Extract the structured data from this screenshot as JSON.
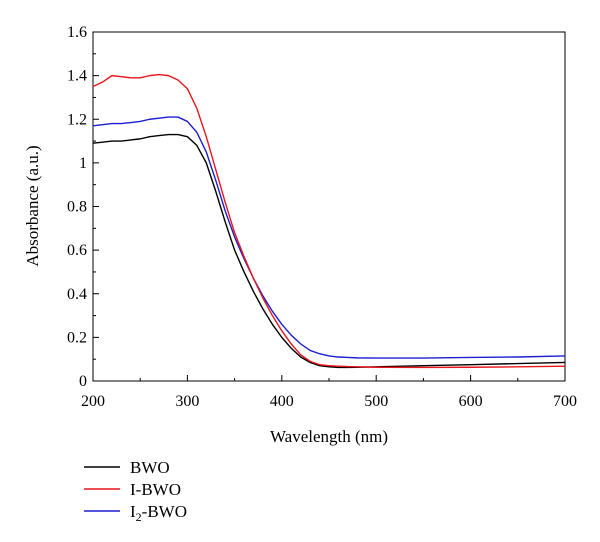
{
  "chart_data": {
    "type": "line",
    "xlabel": "Wavelength (nm)",
    "ylabel": "Absorbance (a.u.)",
    "xlim": [
      200,
      700
    ],
    "ylim": [
      0,
      1.6
    ],
    "xticks": [
      200,
      300,
      400,
      500,
      600,
      700
    ],
    "yticks": [
      0,
      0.2,
      0.4,
      0.6,
      0.8,
      1,
      1.2,
      1.4,
      1.6
    ],
    "ytick_labels": [
      "0",
      "0.2",
      "0.4",
      "0.6",
      "0.8",
      "1",
      "1.2",
      "1.4",
      "1.6"
    ],
    "grid": false,
    "legend_position": "bottom-left, below plot",
    "series": [
      {
        "name": "BWO",
        "color": "#000000",
        "x": [
          200,
          210,
          220,
          230,
          240,
          250,
          260,
          270,
          280,
          290,
          300,
          310,
          320,
          330,
          340,
          350,
          360,
          370,
          380,
          390,
          400,
          410,
          420,
          430,
          440,
          450,
          460,
          470,
          480,
          500,
          550,
          600,
          650,
          700
        ],
        "y": [
          1.09,
          1.095,
          1.1,
          1.1,
          1.105,
          1.11,
          1.12,
          1.125,
          1.13,
          1.13,
          1.12,
          1.08,
          1.0,
          0.87,
          0.73,
          0.6,
          0.5,
          0.41,
          0.33,
          0.26,
          0.2,
          0.15,
          0.11,
          0.085,
          0.07,
          0.065,
          0.062,
          0.062,
          0.063,
          0.065,
          0.07,
          0.075,
          0.08,
          0.085
        ]
      },
      {
        "name": "I-BWO",
        "color": "#e8151b",
        "x": [
          200,
          210,
          220,
          230,
          240,
          250,
          260,
          270,
          280,
          290,
          300,
          310,
          320,
          330,
          340,
          350,
          360,
          370,
          380,
          390,
          400,
          410,
          420,
          430,
          440,
          450,
          460,
          470,
          480,
          500,
          550,
          600,
          650,
          700
        ],
        "y": [
          1.35,
          1.37,
          1.4,
          1.395,
          1.39,
          1.39,
          1.4,
          1.405,
          1.4,
          1.38,
          1.34,
          1.25,
          1.12,
          0.97,
          0.82,
          0.68,
          0.57,
          0.47,
          0.38,
          0.3,
          0.23,
          0.17,
          0.12,
          0.09,
          0.075,
          0.07,
          0.068,
          0.066,
          0.065,
          0.063,
          0.062,
          0.063,
          0.065,
          0.068
        ]
      },
      {
        "name": "I₂-BWO",
        "color": "#1b1fcf",
        "x": [
          200,
          210,
          220,
          230,
          240,
          250,
          260,
          270,
          280,
          290,
          300,
          310,
          320,
          330,
          340,
          350,
          360,
          370,
          380,
          390,
          400,
          410,
          420,
          430,
          440,
          450,
          460,
          470,
          480,
          500,
          550,
          600,
          650,
          700
        ],
        "y": [
          1.17,
          1.175,
          1.18,
          1.18,
          1.185,
          1.19,
          1.2,
          1.205,
          1.21,
          1.21,
          1.19,
          1.14,
          1.05,
          0.92,
          0.78,
          0.66,
          0.56,
          0.47,
          0.39,
          0.32,
          0.26,
          0.21,
          0.17,
          0.14,
          0.125,
          0.115,
          0.11,
          0.108,
          0.106,
          0.105,
          0.105,
          0.108,
          0.11,
          0.115
        ]
      }
    ]
  },
  "legend": {
    "items": [
      {
        "label_main": "BWO",
        "color": "#000000"
      },
      {
        "label_main": "I-BWO",
        "color": "#e8151b"
      },
      {
        "label_main": "I",
        "label_sub": "2",
        "label_rest": "-BWO",
        "color": "#1b1fcf"
      }
    ]
  }
}
